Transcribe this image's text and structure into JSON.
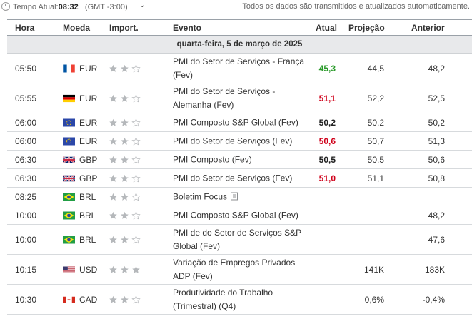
{
  "header": {
    "timezone_label": "Tempo Atual:",
    "current_time": "08:32",
    "timezone": "(GMT -3:00)",
    "note": "Todos os dados são transmitidos e atualizados automaticamente."
  },
  "columns": {
    "time": "Hora",
    "currency": "Moeda",
    "importance": "Import.",
    "event": "Evento",
    "actual": "Atual",
    "forecast": "Projeção",
    "previous": "Anterior"
  },
  "date_header": "quarta-feira, 5 de março de 2025",
  "colors": {
    "positive": "#2a9a2a",
    "negative": "#d0021b",
    "star": "#b5b8bb"
  },
  "rows": [
    {
      "time": "05:50",
      "flag": "france-flag-icon",
      "currency": "EUR",
      "stars": 2,
      "event": "PMI do Setor de Serviços - França (Fev)",
      "actual": "45,3",
      "actual_status": "positive",
      "forecast": "44,5",
      "previous": "48,2"
    },
    {
      "time": "05:55",
      "flag": "germany-flag-icon",
      "currency": "EUR",
      "stars": 2,
      "event": "PMI do Setor de Serviços - Alemanha (Fev)",
      "actual": "51,1",
      "actual_status": "negative",
      "forecast": "52,2",
      "previous": "52,5"
    },
    {
      "time": "06:00",
      "flag": "eu-flag-icon",
      "currency": "EUR",
      "stars": 2,
      "event": "PMI Composto S&P Global (Fev)",
      "actual": "50,2",
      "actual_status": "neutral",
      "forecast": "50,2",
      "previous": "50,2"
    },
    {
      "time": "06:00",
      "flag": "eu-flag-icon",
      "currency": "EUR",
      "stars": 2,
      "event": "PMI do Setor de Serviços (Fev)",
      "actual": "50,6",
      "actual_status": "negative",
      "forecast": "50,7",
      "previous": "51,3"
    },
    {
      "time": "06:30",
      "flag": "uk-flag-icon",
      "currency": "GBP",
      "stars": 2,
      "event": "PMI Composto (Fev)",
      "actual": "50,5",
      "actual_status": "neutral",
      "forecast": "50,5",
      "previous": "50,6"
    },
    {
      "time": "06:30",
      "flag": "uk-flag-icon",
      "currency": "GBP",
      "stars": 2,
      "event": "PMI do Setor de Serviços (Fev)",
      "actual": "51,0",
      "actual_status": "negative",
      "forecast": "51,1",
      "previous": "50,8"
    },
    {
      "time": "08:25",
      "flag": "brazil-flag-icon",
      "currency": "BRL",
      "stars": 2,
      "event": "Boletim Focus",
      "actual": "",
      "actual_status": "",
      "forecast": "",
      "previous": "",
      "has_doc_icon": true
    },
    {
      "time": "10:00",
      "flag": "brazil-flag-icon",
      "currency": "BRL",
      "stars": 2,
      "event": "PMI Composto S&P Global (Fev)",
      "actual": "",
      "actual_status": "",
      "forecast": "",
      "previous": "48,2"
    },
    {
      "time": "10:00",
      "flag": "brazil-flag-icon",
      "currency": "BRL",
      "stars": 2,
      "event": "PMI de do Setor de Serviços S&P Global (Fev)",
      "actual": "",
      "actual_status": "",
      "forecast": "",
      "previous": "47,6"
    },
    {
      "time": "10:15",
      "flag": "usa-flag-icon",
      "currency": "USD",
      "stars": 3,
      "event": "Variação de Empregos Privados ADP (Fev)",
      "actual": "",
      "actual_status": "",
      "forecast": "141K",
      "previous": "183K"
    },
    {
      "time": "10:30",
      "flag": "canada-flag-icon",
      "currency": "CAD",
      "stars": 2,
      "event": "Produtividade do Trabalho (Trimestral) (Q4)",
      "actual": "",
      "actual_status": "",
      "forecast": "0,6%",
      "previous": "-0,4%"
    }
  ]
}
